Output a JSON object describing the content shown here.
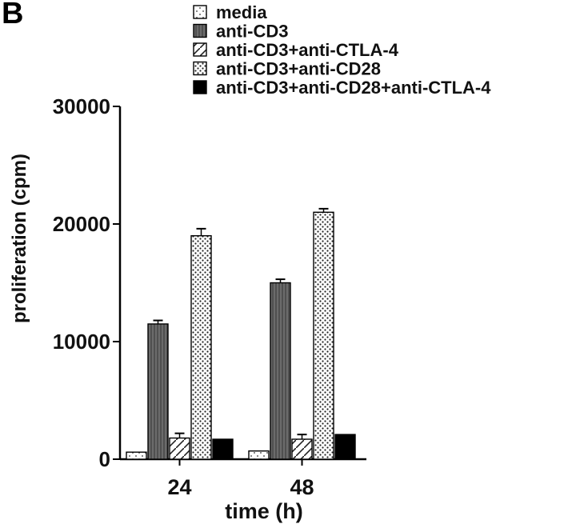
{
  "panel_label": "B",
  "chart_data": {
    "type": "bar",
    "xlabel": "time (h)",
    "ylabel": "proliferation (cpm)",
    "ylim": [
      0,
      30000
    ],
    "yticks": [
      0,
      10000,
      20000,
      30000
    ],
    "categories": [
      "24",
      "48"
    ],
    "legend_position": "top-right",
    "series": [
      {
        "name": "media",
        "values": [
          600,
          700
        ],
        "errors": [
          0,
          0
        ],
        "pattern": "dots-sparse"
      },
      {
        "name": "anti-CD3",
        "values": [
          11500,
          15000
        ],
        "errors": [
          300,
          300
        ],
        "pattern": "gray-vertical"
      },
      {
        "name": "anti-CD3+anti-CTLA-4",
        "values": [
          1800,
          1700
        ],
        "errors": [
          400,
          400
        ],
        "pattern": "diagonal"
      },
      {
        "name": "anti-CD3+anti-CD28",
        "values": [
          19000,
          21000
        ],
        "errors": [
          600,
          300
        ],
        "pattern": "dots-dense"
      },
      {
        "name": "anti-CD3+anti-CD28+anti-CTLA-4",
        "values": [
          1700,
          2100
        ],
        "errors": [
          0,
          0
        ],
        "pattern": "solid-black"
      }
    ]
  }
}
